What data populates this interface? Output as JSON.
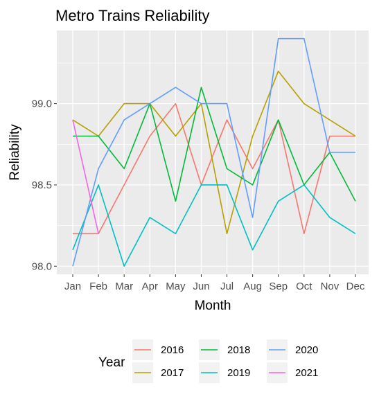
{
  "chart_data": {
    "type": "line",
    "title": "Metro Trains Reliability",
    "xlabel": "Month",
    "ylabel": "Reliability",
    "categories": [
      "Jan",
      "Feb",
      "Mar",
      "Apr",
      "May",
      "Jun",
      "Jul",
      "Aug",
      "Sep",
      "Oct",
      "Nov",
      "Dec"
    ],
    "ylim": [
      97.95,
      99.45
    ],
    "yticks": [
      98.0,
      98.5,
      99.0
    ],
    "ytick_labels": [
      "98.0",
      "98.5",
      "99.0"
    ],
    "grid": true,
    "legend": {
      "title": "Year",
      "position": "bottom"
    },
    "series": [
      {
        "name": "2016",
        "color": "#F8766D",
        "values": [
          98.2,
          98.2,
          98.5,
          98.8,
          99.0,
          98.5,
          98.9,
          98.6,
          98.9,
          98.2,
          98.8,
          98.8
        ]
      },
      {
        "name": "2017",
        "color": "#B79F00",
        "values": [
          98.9,
          98.8,
          99.0,
          99.0,
          98.8,
          99.0,
          98.2,
          98.8,
          99.2,
          99.0,
          98.9,
          98.8
        ]
      },
      {
        "name": "2018",
        "color": "#00BA38",
        "values": [
          98.8,
          98.8,
          98.6,
          99.0,
          98.4,
          99.1,
          98.6,
          98.5,
          98.9,
          98.5,
          98.7,
          98.4
        ]
      },
      {
        "name": "2019",
        "color": "#00BFC4",
        "values": [
          98.1,
          98.5,
          98.0,
          98.3,
          98.2,
          98.5,
          98.5,
          98.1,
          98.4,
          98.5,
          98.3,
          98.2
        ]
      },
      {
        "name": "2020",
        "color": "#619CFF",
        "values": [
          98.0,
          98.6,
          98.9,
          99.0,
          99.1,
          99.0,
          99.0,
          98.3,
          99.4,
          99.4,
          98.7,
          98.7
        ]
      },
      {
        "name": "2021",
        "color": "#F564E3",
        "values": [
          98.9,
          98.2,
          null,
          null,
          null,
          null,
          null,
          null,
          null,
          null,
          null,
          null
        ]
      }
    ]
  }
}
